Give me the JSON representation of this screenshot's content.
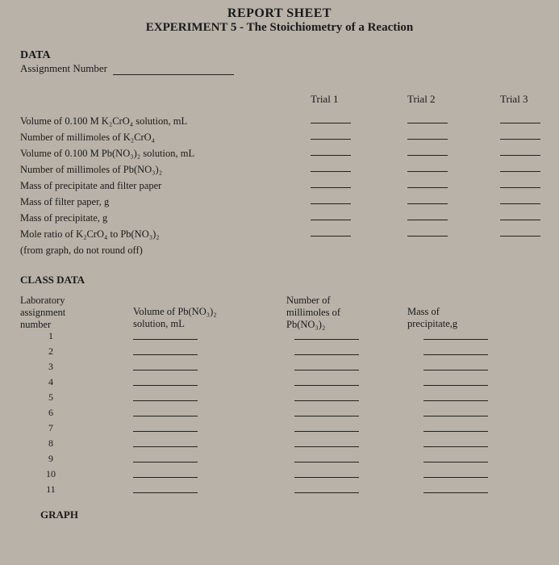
{
  "header": {
    "title_main": "REPORT SHEET",
    "title_sub": "EXPERIMENT 5 - The Stoichiometry of a Reaction"
  },
  "data_section": {
    "heading": "DATA",
    "assignment_label": "Assignment Number",
    "trial_headers": [
      "Trial 1",
      "Trial 2",
      "Trial 3"
    ],
    "rows": [
      "Volume of 0.100 M  K₂CrO₄ solution, mL",
      "Number of millimoles of K₂CrO₄",
      "Volume of 0.100 M  Pb(NO₃)₂ solution, mL",
      "Number of millimoles of Pb(NO₃)₂",
      "Mass of precipitate and filter paper",
      "Mass of filter paper, g",
      "Mass of precipitate, g",
      "Mole ratio of K₂CrO₄ to Pb(NO₃)₂",
      "(from graph, do not round off)"
    ]
  },
  "class_data": {
    "heading": "CLASS DATA",
    "columns": {
      "col1_line1": "Laboratory",
      "col1_line2": "assignment",
      "col1_line3": "number",
      "col2_line1": "Volume of Pb(NO₃)₂",
      "col2_line2": "solution, mL",
      "col3_line1": "Number of",
      "col3_line2": "millimoles of",
      "col3_line3": "Pb(NO₃)₂",
      "col4_line1": "Mass of",
      "col4_line2": "precipitate,g"
    },
    "row_numbers": [
      "1",
      "2",
      "3",
      "4",
      "5",
      "6",
      "7",
      "8",
      "9",
      "10",
      "11"
    ]
  },
  "graph_heading": "GRAPH",
  "colors": {
    "background": "#b8b2a8",
    "text": "#1a1a1a",
    "line": "#222222"
  },
  "layout": {
    "trial_col_positions": [
      360,
      480,
      595
    ],
    "class_col_positions": {
      "col1": 0,
      "col2": 140,
      "col3": 330,
      "col4": 480
    },
    "class_blank_positions": [
      140,
      340,
      500
    ]
  }
}
